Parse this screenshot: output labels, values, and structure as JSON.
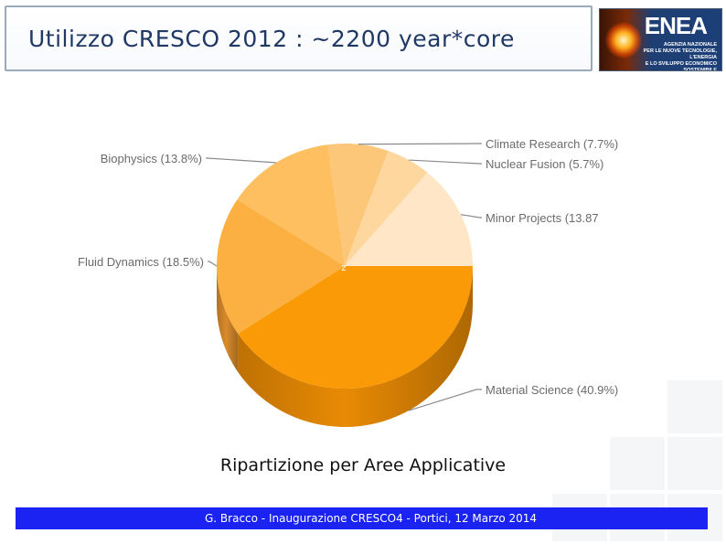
{
  "slide": {
    "title": "Utilizzo CRESCO 2012 : ~2200 year*core",
    "caption": "Ripartizione per Aree Applicative",
    "footer": "G. Bracco - Inaugurazione CRESCO4 -  Portici, 12 Marzo 2014",
    "logo": {
      "name": "ENEA",
      "subtitle_lines": [
        "AGENZIA NAZIONALE",
        "PER LE NUOVE TECNOLOGIE, L'ENERGIA",
        "E LO SVILUPPO ECONOMICO SOSTENIBILE"
      ]
    },
    "center_mark": "z"
  },
  "colors": {
    "title": "#1f3864",
    "footer_bg": "#1a23f2",
    "leader_line": "#8a8a8a"
  },
  "chart_data": {
    "type": "pie",
    "style": "3d",
    "categories": [
      "Material Science",
      "Fluid Dynamics",
      "Biophysics",
      "Climate Research",
      "Nuclear Fusion",
      "Minor Projects"
    ],
    "values": [
      40.9,
      18.5,
      13.8,
      7.7,
      5.7,
      13.87
    ],
    "labels": [
      "Material Science (40.9%)",
      "Fluid Dynamics (18.5%)",
      "Biophysics (13.8%)",
      "Climate Research (7.7%)",
      "Nuclear Fusion (5.7%)",
      "Minor Projects (13.87"
    ],
    "colors": [
      "#fa9a07",
      "#fcb041",
      "#fdbf5f",
      "#fdc77a",
      "#fed79e",
      "#fee6c6"
    ],
    "side_colors": [
      "#e88a04",
      "#d98a2a",
      "#e2a34a",
      "#e8b26a",
      "#ecc28f",
      "#ecd3b0"
    ],
    "start_direction": "3 o'clock",
    "direction": "clockwise"
  }
}
